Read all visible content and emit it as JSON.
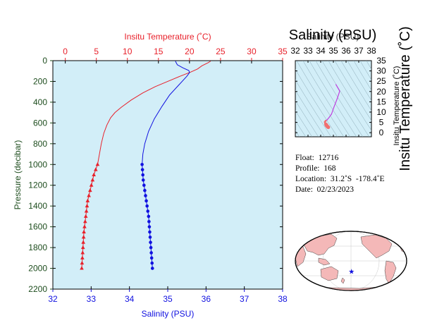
{
  "colors": {
    "temperature": "#e8202a",
    "salinity": "#1010e0",
    "axis_pressure": "#1e4d1e",
    "plot_bg": "#d2eef8",
    "land": "#f4b8b8",
    "ts_deep": "#f07070",
    "ts_shallow": "#c040e0"
  },
  "chart_data": [
    {
      "id": "profile",
      "type": "line",
      "xlabel_top": "Insitu Temperature (˚C)",
      "xlabel_bottom": "Salinity (PSU)",
      "ylabel": "Pressure (decibar)",
      "temperature_ticks": [
        "0",
        "5",
        "10",
        "15",
        "20",
        "25",
        "30",
        "35"
      ],
      "salinity_ticks": [
        "32",
        "33",
        "34",
        "35",
        "36",
        "37",
        "38"
      ],
      "pressure_ticks": [
        "0",
        "200",
        "400",
        "600",
        "800",
        "1000",
        "1200",
        "1400",
        "1600",
        "1800",
        "2000",
        "2200"
      ],
      "temperature_range": [
        -2,
        35
      ],
      "salinity_range": [
        32,
        38
      ],
      "pressure_range": [
        0,
        2200
      ],
      "series": [
        {
          "name": "Insitu Temperature",
          "points": [
            [
              23.4,
              5
            ],
            [
              23.0,
              20
            ],
            [
              22.0,
              50
            ],
            [
              21.3,
              80
            ],
            [
              20.2,
              110
            ],
            [
              18.5,
              150
            ],
            [
              16.5,
              200
            ],
            [
              14.5,
              250
            ],
            [
              12.5,
              310
            ],
            [
              10.6,
              380
            ],
            [
              9.0,
              450
            ],
            [
              8.0,
              500
            ],
            [
              7.3,
              550
            ],
            [
              6.7,
              620
            ],
            [
              6.2,
              700
            ],
            [
              5.8,
              800
            ],
            [
              5.5,
              900
            ],
            [
              5.2,
              1000
            ],
            [
              4.9,
              1050
            ],
            [
              4.6,
              1100
            ],
            [
              4.4,
              1150
            ],
            [
              4.2,
              1200
            ],
            [
              4.0,
              1250
            ],
            [
              3.8,
              1300
            ],
            [
              3.6,
              1350
            ],
            [
              3.5,
              1400
            ],
            [
              3.4,
              1450
            ],
            [
              3.3,
              1500
            ],
            [
              3.2,
              1550
            ],
            [
              3.1,
              1600
            ],
            [
              3.0,
              1650
            ],
            [
              2.95,
              1700
            ],
            [
              2.9,
              1750
            ],
            [
              2.85,
              1800
            ],
            [
              2.8,
              1850
            ],
            [
              2.75,
              1900
            ],
            [
              2.7,
              1950
            ],
            [
              2.65,
              2000
            ]
          ],
          "sampled_from": 1000
        },
        {
          "name": "Salinity",
          "points": [
            [
              35.2,
              5
            ],
            [
              35.25,
              40
            ],
            [
              35.4,
              70
            ],
            [
              35.55,
              95
            ],
            [
              35.57,
              115
            ],
            [
              35.5,
              150
            ],
            [
              35.3,
              230
            ],
            [
              35.05,
              330
            ],
            [
              34.85,
              440
            ],
            [
              34.65,
              560
            ],
            [
              34.5,
              680
            ],
            [
              34.4,
              800
            ],
            [
              34.35,
              900
            ],
            [
              34.33,
              1000
            ],
            [
              34.34,
              1050
            ],
            [
              34.35,
              1100
            ],
            [
              34.36,
              1150
            ],
            [
              34.38,
              1200
            ],
            [
              34.4,
              1250
            ],
            [
              34.42,
              1300
            ],
            [
              34.44,
              1350
            ],
            [
              34.46,
              1400
            ],
            [
              34.48,
              1450
            ],
            [
              34.5,
              1500
            ],
            [
              34.51,
              1550
            ],
            [
              34.52,
              1600
            ],
            [
              34.53,
              1650
            ],
            [
              34.54,
              1700
            ],
            [
              34.55,
              1750
            ],
            [
              34.56,
              1800
            ],
            [
              34.57,
              1850
            ],
            [
              34.58,
              1900
            ],
            [
              34.59,
              1950
            ],
            [
              34.6,
              2000
            ]
          ],
          "sampled_from": 1000
        }
      ]
    },
    {
      "id": "ts-diagram",
      "type": "scatter",
      "title": "Salinity (PSU)",
      "xlabel": "Salinity (PSU)",
      "ylabel": "Insitu Temperature (˚C)",
      "x_ticks": [
        "32",
        "33",
        "34",
        "35",
        "36",
        "37",
        "38"
      ],
      "y_ticks": [
        "0",
        "5",
        "10",
        "15",
        "20",
        "25",
        "30",
        "35"
      ],
      "x_range": [
        32,
        38
      ],
      "y_range": [
        -2,
        35
      ],
      "series": [
        {
          "name": "T-S curve",
          "points": [
            [
              35.2,
              23.4
            ],
            [
              35.5,
              20.2
            ],
            [
              35.3,
              16.5
            ],
            [
              35.05,
              12.5
            ],
            [
              34.85,
              9.0
            ],
            [
              34.65,
              7.3
            ],
            [
              34.5,
              6.2
            ],
            [
              34.4,
              5.8
            ],
            [
              34.33,
              5.2
            ],
            [
              34.36,
              4.4
            ],
            [
              34.42,
              4.0
            ],
            [
              34.46,
              3.5
            ],
            [
              34.5,
              3.3
            ],
            [
              34.53,
              3.0
            ],
            [
              34.56,
              2.85
            ],
            [
              34.6,
              2.65
            ]
          ]
        }
      ]
    }
  ],
  "float_info": {
    "float": "Float:  12716",
    "profile": "Profile:  168",
    "location": "Location:  31.2˚S  -178.4˚E",
    "date": "Date:  02/23/2023"
  },
  "map": {
    "marker_lat": -31.2,
    "marker_lon": -178.4
  }
}
